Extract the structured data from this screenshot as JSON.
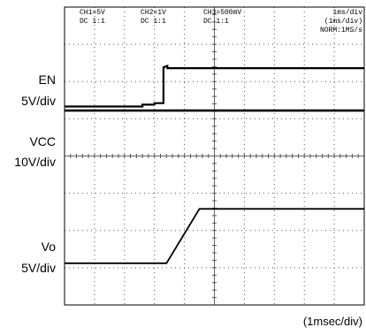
{
  "header": {
    "ch1": {
      "label": "CH1=5V",
      "coupling": "DC 1:1"
    },
    "ch2": {
      "label": "CH2=1V",
      "coupling": "DC 1:1"
    },
    "ch3": {
      "label": "CH3=500mV",
      "coupling": "DC 1:1"
    },
    "timebase": {
      "line1": "1ms/div",
      "line2": "(1ms/div)",
      "line3": "NORM:1MS/s"
    }
  },
  "traces": {
    "en": {
      "name": "EN",
      "scale": "5V/div"
    },
    "vcc": {
      "name": "VCC",
      "scale": "10V/div"
    },
    "vo": {
      "name": "Vo",
      "scale": "5V/div"
    }
  },
  "footer": {
    "timebase_label": "(1msec/div)"
  },
  "chart_data": {
    "type": "line",
    "grid": true,
    "xlim": [
      0,
      10
    ],
    "ylim": [
      0,
      8
    ],
    "x_unit": "ms",
    "y_unit": "div",
    "series": [
      {
        "name": "EN",
        "x": [
          0,
          2.6,
          2.6,
          3.0,
          3.0,
          3.3,
          3.3,
          3.43,
          3.43,
          10
        ],
        "y": [
          5.33,
          5.33,
          5.38,
          5.38,
          5.42,
          5.42,
          6.38,
          6.42,
          6.36,
          6.36
        ]
      },
      {
        "name": "VCC",
        "x": [
          0,
          10
        ],
        "y": [
          5.22,
          5.22
        ]
      },
      {
        "name": "Vo",
        "x": [
          0,
          3.4,
          4.5,
          10
        ],
        "y": [
          1.12,
          1.12,
          2.58,
          2.58
        ]
      }
    ]
  }
}
